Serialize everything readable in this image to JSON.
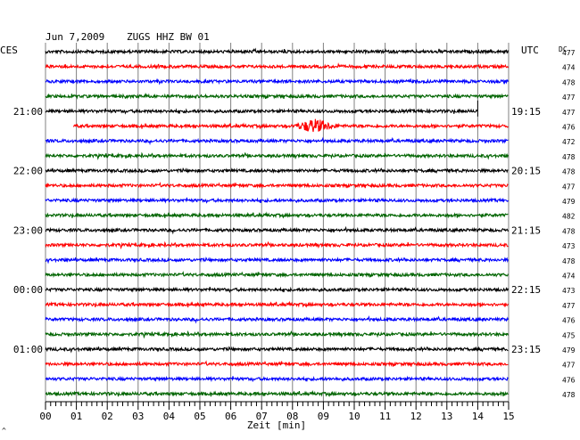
{
  "header": {
    "date": "Jun 7,2009",
    "station": "ZUGS HHZ BW 01",
    "left_tz": "CES",
    "right_tz": "UTC",
    "dc_label": "DC"
  },
  "chart_data": {
    "type": "line",
    "xlabel": "Zeit [min]",
    "xlim": [
      0,
      15
    ],
    "x_ticks": [
      "00",
      "01",
      "02",
      "03",
      "04",
      "05",
      "06",
      "07",
      "08",
      "09",
      "10",
      "11",
      "12",
      "13",
      "14",
      "15"
    ],
    "trace_count": 24,
    "trace_colors": [
      "#000000",
      "#ff0000",
      "#0000ff",
      "#006400"
    ],
    "left_time_labels": [
      {
        "trace": 4,
        "label": "21:00"
      },
      {
        "trace": 8,
        "label": "22:00"
      },
      {
        "trace": 12,
        "label": "23:00"
      },
      {
        "trace": 16,
        "label": "00:00"
      },
      {
        "trace": 20,
        "label": "01:00"
      }
    ],
    "right_time_labels": [
      {
        "trace": 4,
        "label": "19:15"
      },
      {
        "trace": 8,
        "label": "20:15"
      },
      {
        "trace": 12,
        "label": "21:15"
      },
      {
        "trace": 16,
        "label": "22:15"
      },
      {
        "trace": 20,
        "label": "23:15"
      }
    ],
    "dc_offsets": [
      "477",
      "474",
      "478",
      "477",
      "477",
      "476",
      "472",
      "478",
      "478",
      "477",
      "479",
      "482",
      "478",
      "473",
      "478",
      "474",
      "473",
      "477",
      "476",
      "475",
      "479",
      "477",
      "476",
      "478"
    ],
    "events": [
      {
        "trace": 5,
        "start_min": 8.0,
        "end_min": 9.6,
        "label": ""
      }
    ],
    "gaps": [
      {
        "trace": 4,
        "start_min": 14.0,
        "end_min": 15.0
      },
      {
        "trace": 5,
        "start_min": 0.0,
        "end_min": 0.9
      }
    ]
  }
}
